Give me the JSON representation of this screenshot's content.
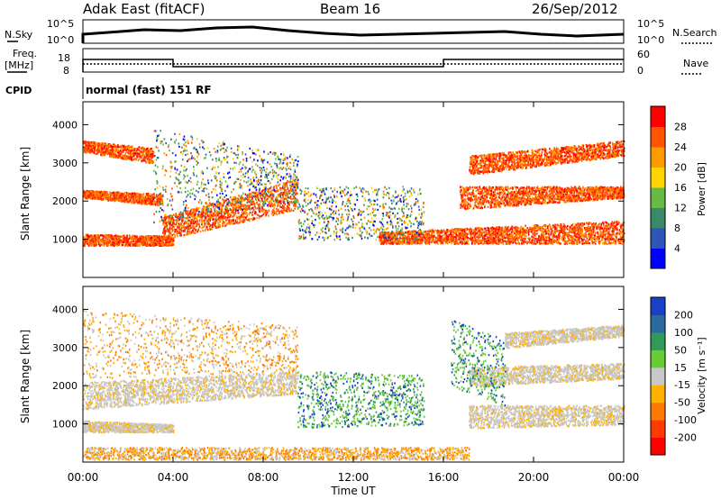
{
  "header": {
    "station": "Adak East (fitACF)",
    "beam": "Beam 16",
    "date": "26/Sep/2012"
  },
  "panels": {
    "noise": {
      "left_label": "N.Sky",
      "right_label": "N.Search",
      "left_ticks": [
        "10^5",
        "10^0"
      ],
      "right_ticks": [
        "10^5",
        "10^0"
      ]
    },
    "freq": {
      "left_label_1": "Freq.",
      "left_label_2": "[MHz]",
      "right_label": "Nave",
      "left_ticks": [
        "18",
        "8"
      ],
      "right_ticks": [
        "60",
        "0"
      ]
    },
    "cpid": {
      "label": "CPID",
      "value": "normal (fast) 151 RF"
    }
  },
  "chart_data": [
    {
      "type": "heatmap",
      "title": "",
      "ylabel": "Slant Range [km]",
      "xlabel": "Time UT",
      "y_ticks": [
        "1000",
        "2000",
        "3000",
        "4000"
      ],
      "x_ticks": [
        "00:00",
        "04:00",
        "08:00",
        "12:00",
        "16:00",
        "20:00",
        "00:00"
      ],
      "colorbar": {
        "label": "Power [dB]",
        "ticks": [
          "4",
          "8",
          "12",
          "16",
          "20",
          "24",
          "28"
        ],
        "colors": [
          "#0000ff",
          "#2e55b8",
          "#3a8a6a",
          "#66bb44",
          "#ffd400",
          "#ff9900",
          "#ff5500",
          "#ff0000"
        ]
      }
    },
    {
      "type": "heatmap",
      "title": "",
      "ylabel": "Slant Range [km]",
      "xlabel": "Time UT",
      "y_ticks": [
        "1000",
        "2000",
        "3000",
        "4000"
      ],
      "x_ticks": [
        "00:00",
        "04:00",
        "08:00",
        "12:00",
        "16:00",
        "20:00",
        "00:00"
      ],
      "colorbar": {
        "label": "Velocity [m s⁻¹]",
        "ticks": [
          "200",
          "100",
          "50",
          "15",
          "-15",
          "-50",
          "-100",
          "-200"
        ],
        "colors": [
          "#1a3fc8",
          "#2b6aa0",
          "#2f9a5a",
          "#66cc33",
          "#c8c8c8",
          "#ffb000",
          "#ff7a00",
          "#ff3a00",
          "#ff0000"
        ]
      }
    }
  ]
}
